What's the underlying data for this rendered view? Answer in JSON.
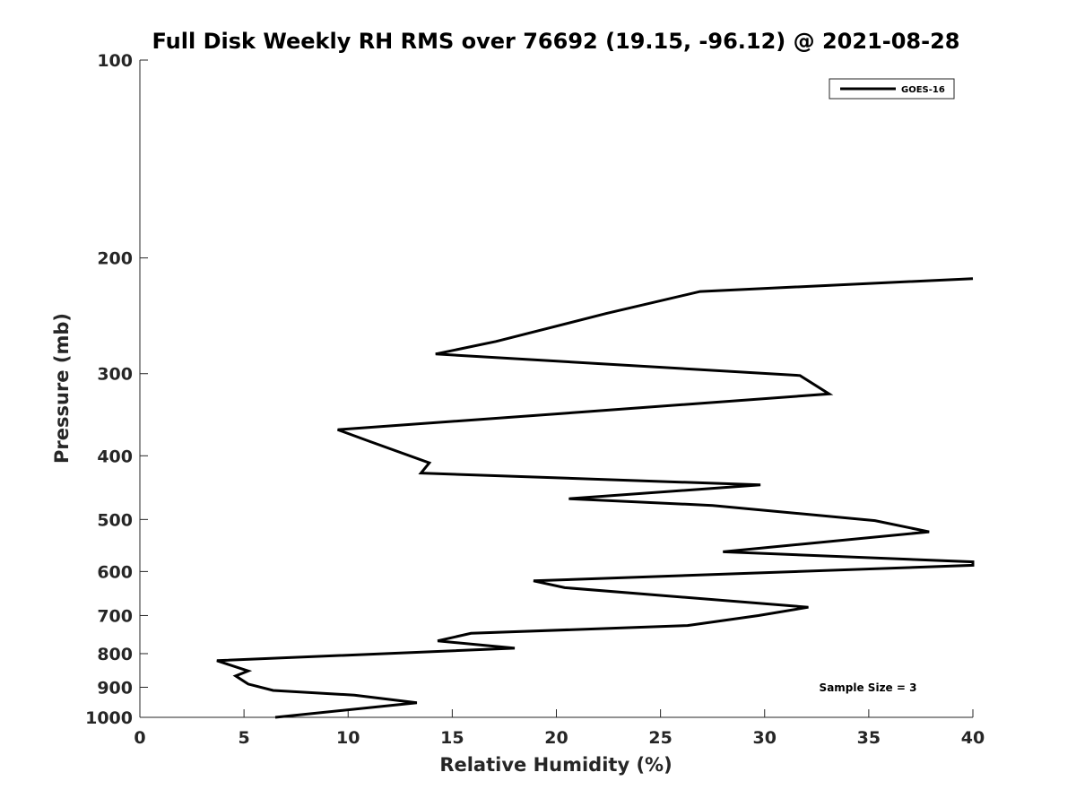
{
  "chart_data": {
    "type": "line",
    "title": "Full Disk Weekly RH RMS over 76692 (19.15, -96.12) @ 2021-08-28",
    "xlabel": "Relative Humidity (%)",
    "ylabel": "Pressure (mb)",
    "xlim": [
      0,
      40
    ],
    "ylim": [
      100,
      1000
    ],
    "yscale": "log",
    "y_reversed": true,
    "xticks": [
      0,
      5,
      10,
      15,
      20,
      25,
      30,
      35,
      40
    ],
    "yticks": [
      100,
      200,
      300,
      400,
      500,
      600,
      700,
      800,
      900,
      1000
    ],
    "grid": false,
    "legend": {
      "placement": "top-right",
      "entries": [
        "GOES-16"
      ]
    },
    "annotation": "Sample Size = 3",
    "line_color": "#000000",
    "series": [
      {
        "name": "GOES-16",
        "points": [
          [
            6.5,
            1000
          ],
          [
            13.3,
            950
          ],
          [
            10.3,
            925
          ],
          [
            6.4,
            910
          ],
          [
            5.2,
            890
          ],
          [
            4.6,
            865
          ],
          [
            5.2,
            850
          ],
          [
            3.7,
            820
          ],
          [
            18.0,
            785
          ],
          [
            14.3,
            765
          ],
          [
            15.9,
            745
          ],
          [
            26.3,
            725
          ],
          [
            29.7,
            700
          ],
          [
            32.1,
            680
          ],
          [
            20.4,
            635
          ],
          [
            18.9,
            620
          ],
          [
            40.0,
            587
          ],
          [
            40.0,
            580
          ],
          [
            28.0,
            560
          ],
          [
            37.9,
            522
          ],
          [
            35.3,
            502
          ],
          [
            27.5,
            476
          ],
          [
            20.6,
            465
          ],
          [
            29.8,
            443
          ],
          [
            13.5,
            425
          ],
          [
            13.9,
            410
          ],
          [
            11.0,
            380
          ],
          [
            9.5,
            365
          ],
          [
            21.3,
            343
          ],
          [
            33.1,
            322
          ],
          [
            31.7,
            302
          ],
          [
            14.2,
            280
          ],
          [
            17.1,
            268
          ],
          [
            22.4,
            243
          ],
          [
            26.9,
            225
          ],
          [
            40.0,
            215
          ]
        ]
      }
    ]
  }
}
